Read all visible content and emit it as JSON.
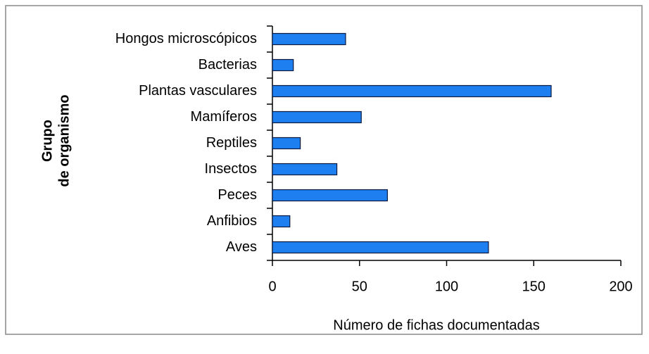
{
  "chart_data": {
    "type": "bar",
    "orientation": "horizontal",
    "categories": [
      "Hongos microscópicos",
      "Bacterias",
      "Plantas vasculares",
      "Mamíferos",
      "Reptiles",
      "Insectos",
      "Peces",
      "Anfibios",
      "Aves"
    ],
    "values": [
      42,
      12,
      160,
      51,
      16,
      37,
      66,
      10,
      124
    ],
    "color": "#1e7ff0",
    "xlabel": "Número de fichas documentadas",
    "ylabel": [
      "Grupo",
      "de organismo"
    ],
    "xlim": [
      0,
      200
    ],
    "xticks": [
      0,
      50,
      100,
      150,
      200
    ]
  }
}
